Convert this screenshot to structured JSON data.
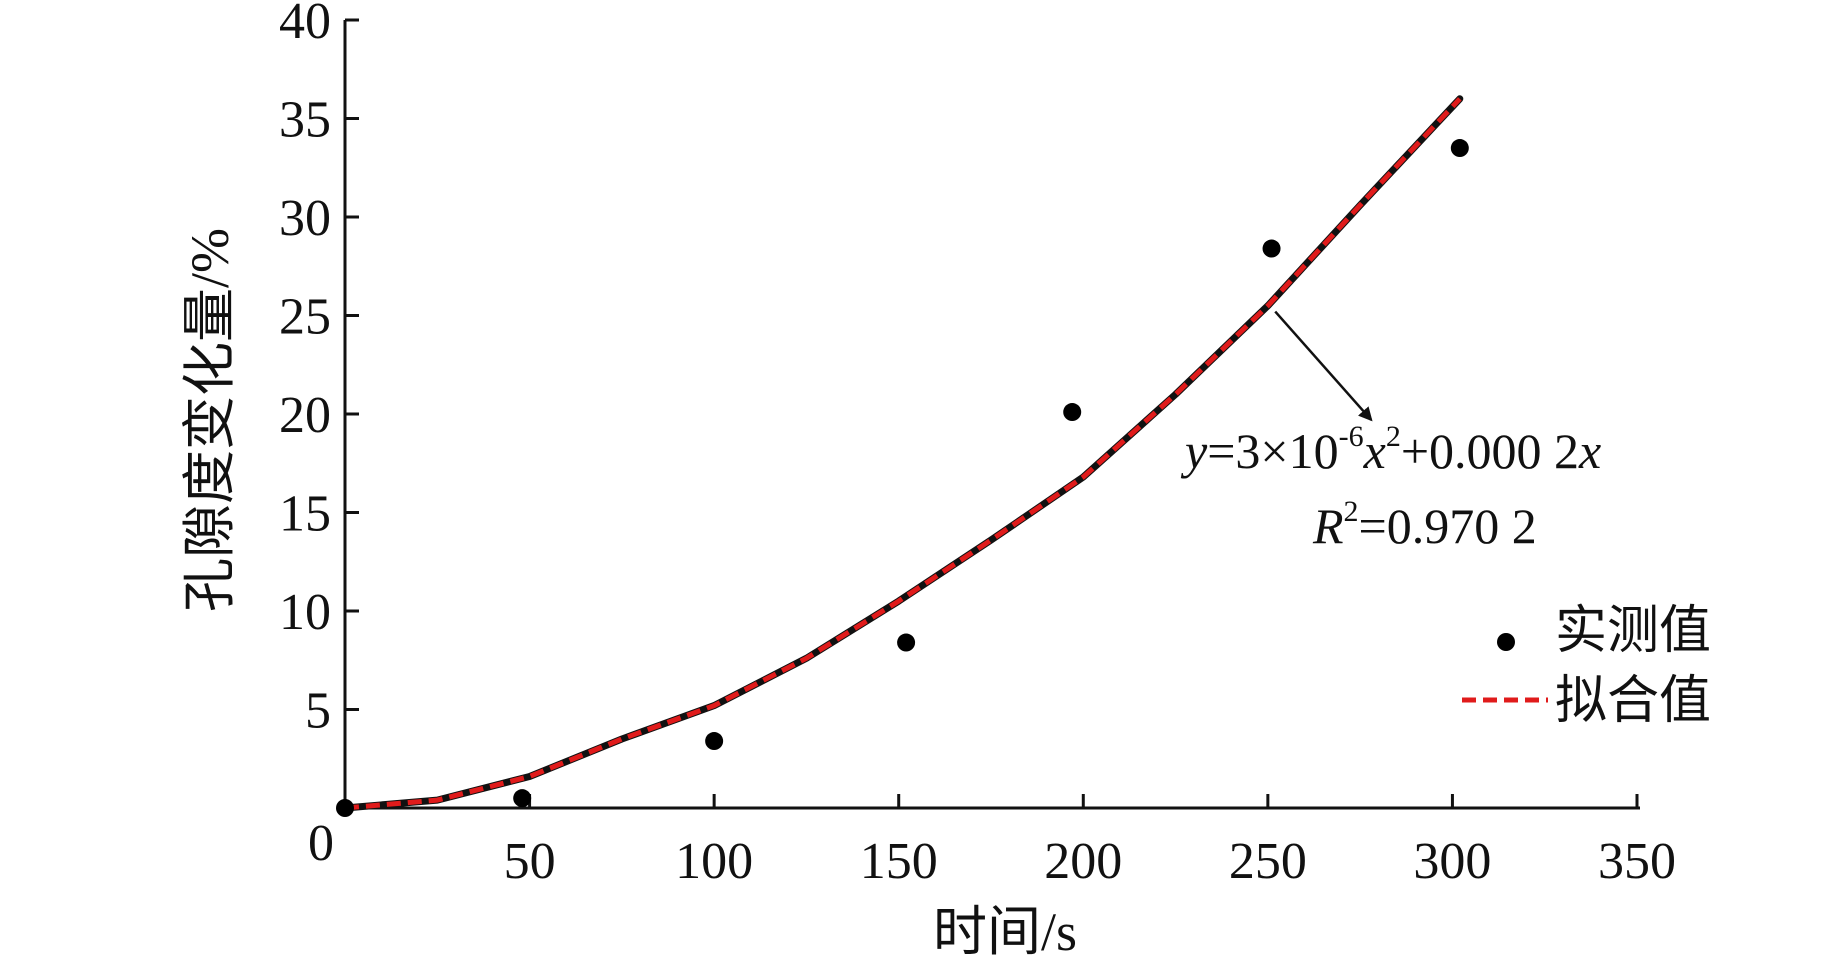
{
  "chart_data": {
    "type": "scatter",
    "xlabel": "时间/s",
    "ylabel": "孔隙度变化量/%",
    "xlim": [
      0,
      350
    ],
    "ylim": [
      0,
      40
    ],
    "x_ticks": [
      "0",
      "50",
      "100",
      "150",
      "200",
      "250",
      "300",
      "350"
    ],
    "y_ticks": [
      "5",
      "10",
      "15",
      "20",
      "25",
      "30",
      "35",
      "40"
    ],
    "grid": false,
    "legend_position": "right",
    "series": [
      {
        "name": "实测值",
        "kind": "scatter",
        "color": "#000000",
        "x": [
          0,
          48,
          100,
          152,
          197,
          251,
          302
        ],
        "y": [
          0,
          0.5,
          3.4,
          8.4,
          20.1,
          28.4,
          33.5
        ]
      },
      {
        "name": "拟合值",
        "kind": "line",
        "style": "dashed",
        "color": "#e01b1b",
        "x": [
          0,
          25,
          50,
          75,
          100,
          125,
          150,
          175,
          200,
          225,
          250,
          275,
          302
        ],
        "y": [
          0,
          0.4,
          1.6,
          3.5,
          5.2,
          7.6,
          10.5,
          13.6,
          16.8,
          21.0,
          25.5,
          30.6,
          36.0
        ]
      }
    ],
    "annotation": {
      "equation_y": "y",
      "equation_rhs1": "=3×10",
      "equation_exp": "-6",
      "equation_x": "x",
      "equation_sq": "2",
      "equation_rhs2": "+0.000 2",
      "equation_x2": "x",
      "r2_label": "R",
      "r2_sup": "2",
      "r2_value": "=0.970 2",
      "arrow_from": [
        252,
        25.2
      ],
      "arrow_to": [
        278,
        19.7
      ]
    }
  }
}
